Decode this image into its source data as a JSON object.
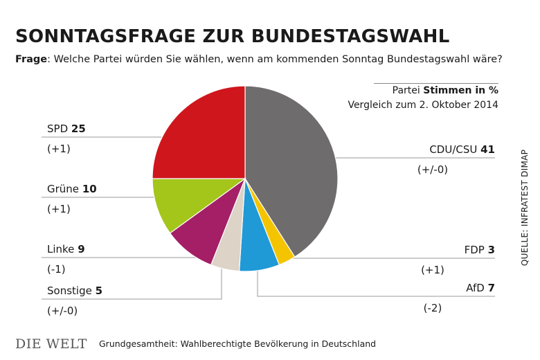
{
  "header": {
    "title": "SONNTAGSFRAGE ZUR BUNDESTAGSWAHL",
    "question_label": "Frage",
    "question_text": ": Welche Partei würden Sie wählen, wenn am kommenden Sonntag  Bundestagswahl wäre?"
  },
  "legend": {
    "line1_prefix": "Partei ",
    "line1_bold": "Stimmen in %",
    "line2": "Vergleich zum 2. Oktober 2014"
  },
  "source": "QUELLE: INFRATEST DIMAP",
  "footer": {
    "logo": "DIE WELT",
    "note": "Grundgesamtheit: Wahlberechtigte Bevölkerung in Deutschland"
  },
  "chart_data": {
    "type": "pie",
    "start_angle": "12 o'clock",
    "direction": "clockwise",
    "slices": [
      {
        "label": "CDU/CSU",
        "value": 41,
        "change": "(+/-0)",
        "color": "#6e6c6c"
      },
      {
        "label": "FDP",
        "value": 3,
        "change": "(+1)",
        "color": "#f5c400"
      },
      {
        "label": "AfD",
        "value": 7,
        "change": "(-2)",
        "color": "#1f9ad6"
      },
      {
        "label": "Sonstige",
        "value": 5,
        "change": "(+/-0)",
        "color": "#ddd3c6"
      },
      {
        "label": "Linke",
        "value": 9,
        "change": "(-1)",
        "color": "#a41f66"
      },
      {
        "label": "Grüne",
        "value": 10,
        "change": "(+1)",
        "color": "#a4c51a"
      },
      {
        "label": "SPD",
        "value": 25,
        "change": "(+1)",
        "color": "#cf161c"
      }
    ]
  }
}
